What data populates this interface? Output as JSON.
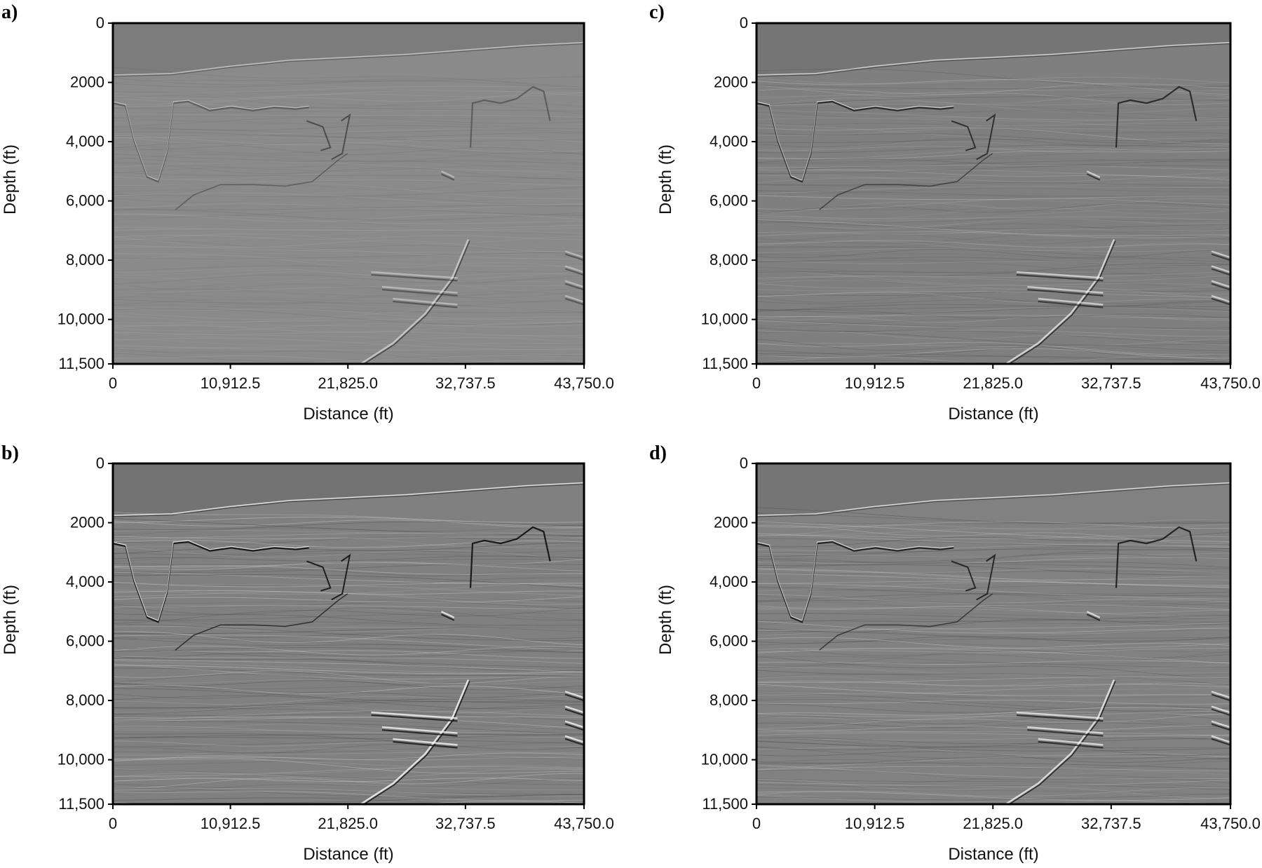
{
  "figure": {
    "type": "seismic-depth-image-panels",
    "panels": [
      "a)",
      "b)",
      "c)",
      "d)"
    ]
  },
  "chart_data": [
    {
      "type": "heatmap",
      "panel": "a)",
      "title": "",
      "xlabel": "Distance (ft)",
      "ylabel": "Depth (ft)",
      "xlim": [
        0,
        43750.0
      ],
      "ylim": [
        0,
        11500
      ],
      "y_inverted": true,
      "xticks": [
        0,
        10912.5,
        21825.0,
        32737.5,
        43750.0
      ],
      "xtick_labels": [
        "0",
        "10,912.5",
        "21,825.0",
        "32,737.5",
        "43,750.0"
      ],
      "yticks": [
        0,
        2000,
        4000,
        6000,
        8000,
        10000,
        11500
      ],
      "ytick_labels": [
        "0",
        "2000",
        "4,000",
        "6,000",
        "8,000",
        "10,000",
        "11,500"
      ],
      "colormap": "grayscale",
      "background_color": "#8a8a8a",
      "contrast": "low"
    },
    {
      "type": "heatmap",
      "panel": "b)",
      "title": "",
      "xlabel": "Distance (ft)",
      "ylabel": "Depth (ft)",
      "xlim": [
        0,
        43750.0
      ],
      "ylim": [
        0,
        11500
      ],
      "y_inverted": true,
      "xticks": [
        0,
        10912.5,
        21825.0,
        32737.5,
        43750.0
      ],
      "xtick_labels": [
        "0",
        "10,912.5",
        "21,825.0",
        "32,737.5",
        "43,750.0"
      ],
      "yticks": [
        0,
        2000,
        4000,
        6000,
        8000,
        10000,
        11500
      ],
      "ytick_labels": [
        "0",
        "2000",
        "4,000",
        "6,000",
        "8,000",
        "10,000",
        "11,500"
      ],
      "colormap": "grayscale",
      "background_color": "#808080",
      "contrast": "high"
    },
    {
      "type": "heatmap",
      "panel": "c)",
      "title": "",
      "xlabel": "Distance (ft)",
      "ylabel": "Depth (ft)",
      "xlim": [
        0,
        43750.0
      ],
      "ylim": [
        0,
        11500
      ],
      "y_inverted": true,
      "xticks": [
        0,
        10912.5,
        21825.0,
        32737.5,
        43750.0
      ],
      "xtick_labels": [
        "0",
        "10,912.5",
        "21,825.0",
        "32,737.5",
        "43,750.0"
      ],
      "yticks": [
        0,
        2000,
        4000,
        6000,
        8000,
        10000,
        11500
      ],
      "ytick_labels": [
        "0",
        "2000",
        "4,000",
        "6,000",
        "8,000",
        "10,000",
        "11,500"
      ],
      "colormap": "grayscale",
      "background_color": "#7f7f7f",
      "contrast": "medium"
    },
    {
      "type": "heatmap",
      "panel": "d)",
      "title": "",
      "xlabel": "Distance (ft)",
      "ylabel": "Depth (ft)",
      "xlim": [
        0,
        43750.0
      ],
      "ylim": [
        0,
        11500
      ],
      "y_inverted": true,
      "xticks": [
        0,
        10912.5,
        21825.0,
        32737.5,
        43750.0
      ],
      "xtick_labels": [
        "0",
        "10,912.5",
        "21,825.0",
        "32,737.5",
        "43,750.0"
      ],
      "yticks": [
        0,
        2000,
        4000,
        6000,
        8000,
        10000,
        11500
      ],
      "ytick_labels": [
        "0",
        "2000",
        "4,000",
        "6,000",
        "8,000",
        "10,000",
        "11,500"
      ],
      "colormap": "grayscale",
      "background_color": "#818181",
      "contrast": "medium-high"
    }
  ],
  "colors": {
    "axis": "#000000",
    "tick_text": "#111111"
  }
}
